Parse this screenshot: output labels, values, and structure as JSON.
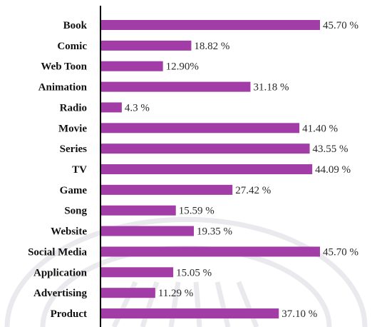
{
  "chart_data": {
    "type": "bar",
    "orientation": "horizontal",
    "title": "",
    "xlabel": "",
    "ylabel": "",
    "categories": [
      "Book",
      "Comic",
      "Web Toon",
      "Animation",
      "Radio",
      "Movie",
      "Series",
      "TV",
      "Game",
      "Song",
      "Website",
      "Social Media",
      "Application",
      "Advertising",
      "Product"
    ],
    "values": [
      45.7,
      18.82,
      12.9,
      31.18,
      4.3,
      41.4,
      43.55,
      44.09,
      27.42,
      15.59,
      19.35,
      45.7,
      15.05,
      11.29,
      37.1
    ],
    "value_labels": [
      "45.70 %",
      "18.82 %",
      "12.90%",
      "31.18 %",
      "4.3 %",
      "41.40 %",
      "43.55 %",
      "44.09 %",
      "27.42 %",
      "15.59 %",
      "19.35 %",
      "45.70 %",
      "15.05 %",
      "11.29 %",
      "37.10 %"
    ],
    "xlim": [
      0,
      50
    ],
    "grid": false,
    "legend": "none",
    "bar_color": "#a23ca6",
    "axis_color": "#000000"
  }
}
